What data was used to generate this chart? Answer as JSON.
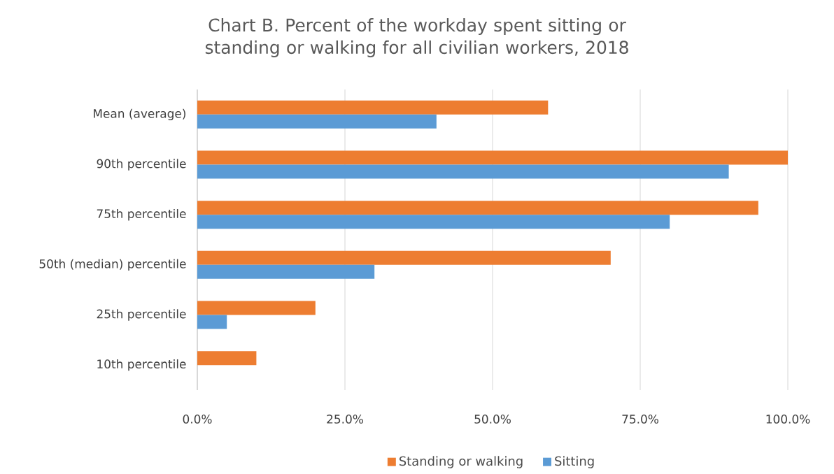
{
  "chart_data": {
    "type": "bar",
    "orientation": "horizontal",
    "title": "Chart B. Percent of the workday spent sitting or standing or walking for all civilian workers, 2018",
    "categories": [
      "Mean (average)",
      "90th percentile",
      "75th percentile",
      "50th (median) percentile",
      "25th percentile",
      "10th percentile"
    ],
    "series": [
      {
        "name": "Standing or walking",
        "color": "#ed7d31",
        "values": [
          59.4,
          100,
          95,
          70,
          20,
          10
        ]
      },
      {
        "name": "Sitting",
        "color": "#5b9bd5",
        "values": [
          40.5,
          90,
          80,
          30,
          5,
          0
        ]
      }
    ],
    "xlim": [
      0,
      100
    ],
    "xticks": [
      {
        "value": 0,
        "label": "0.0%"
      },
      {
        "value": 25,
        "label": "25.0%"
      },
      {
        "value": 50,
        "label": "50.0%"
      },
      {
        "value": 75,
        "label": "75.0%"
      },
      {
        "value": 100,
        "label": "100.0%"
      }
    ],
    "grid": "x",
    "legend": "bottom"
  }
}
